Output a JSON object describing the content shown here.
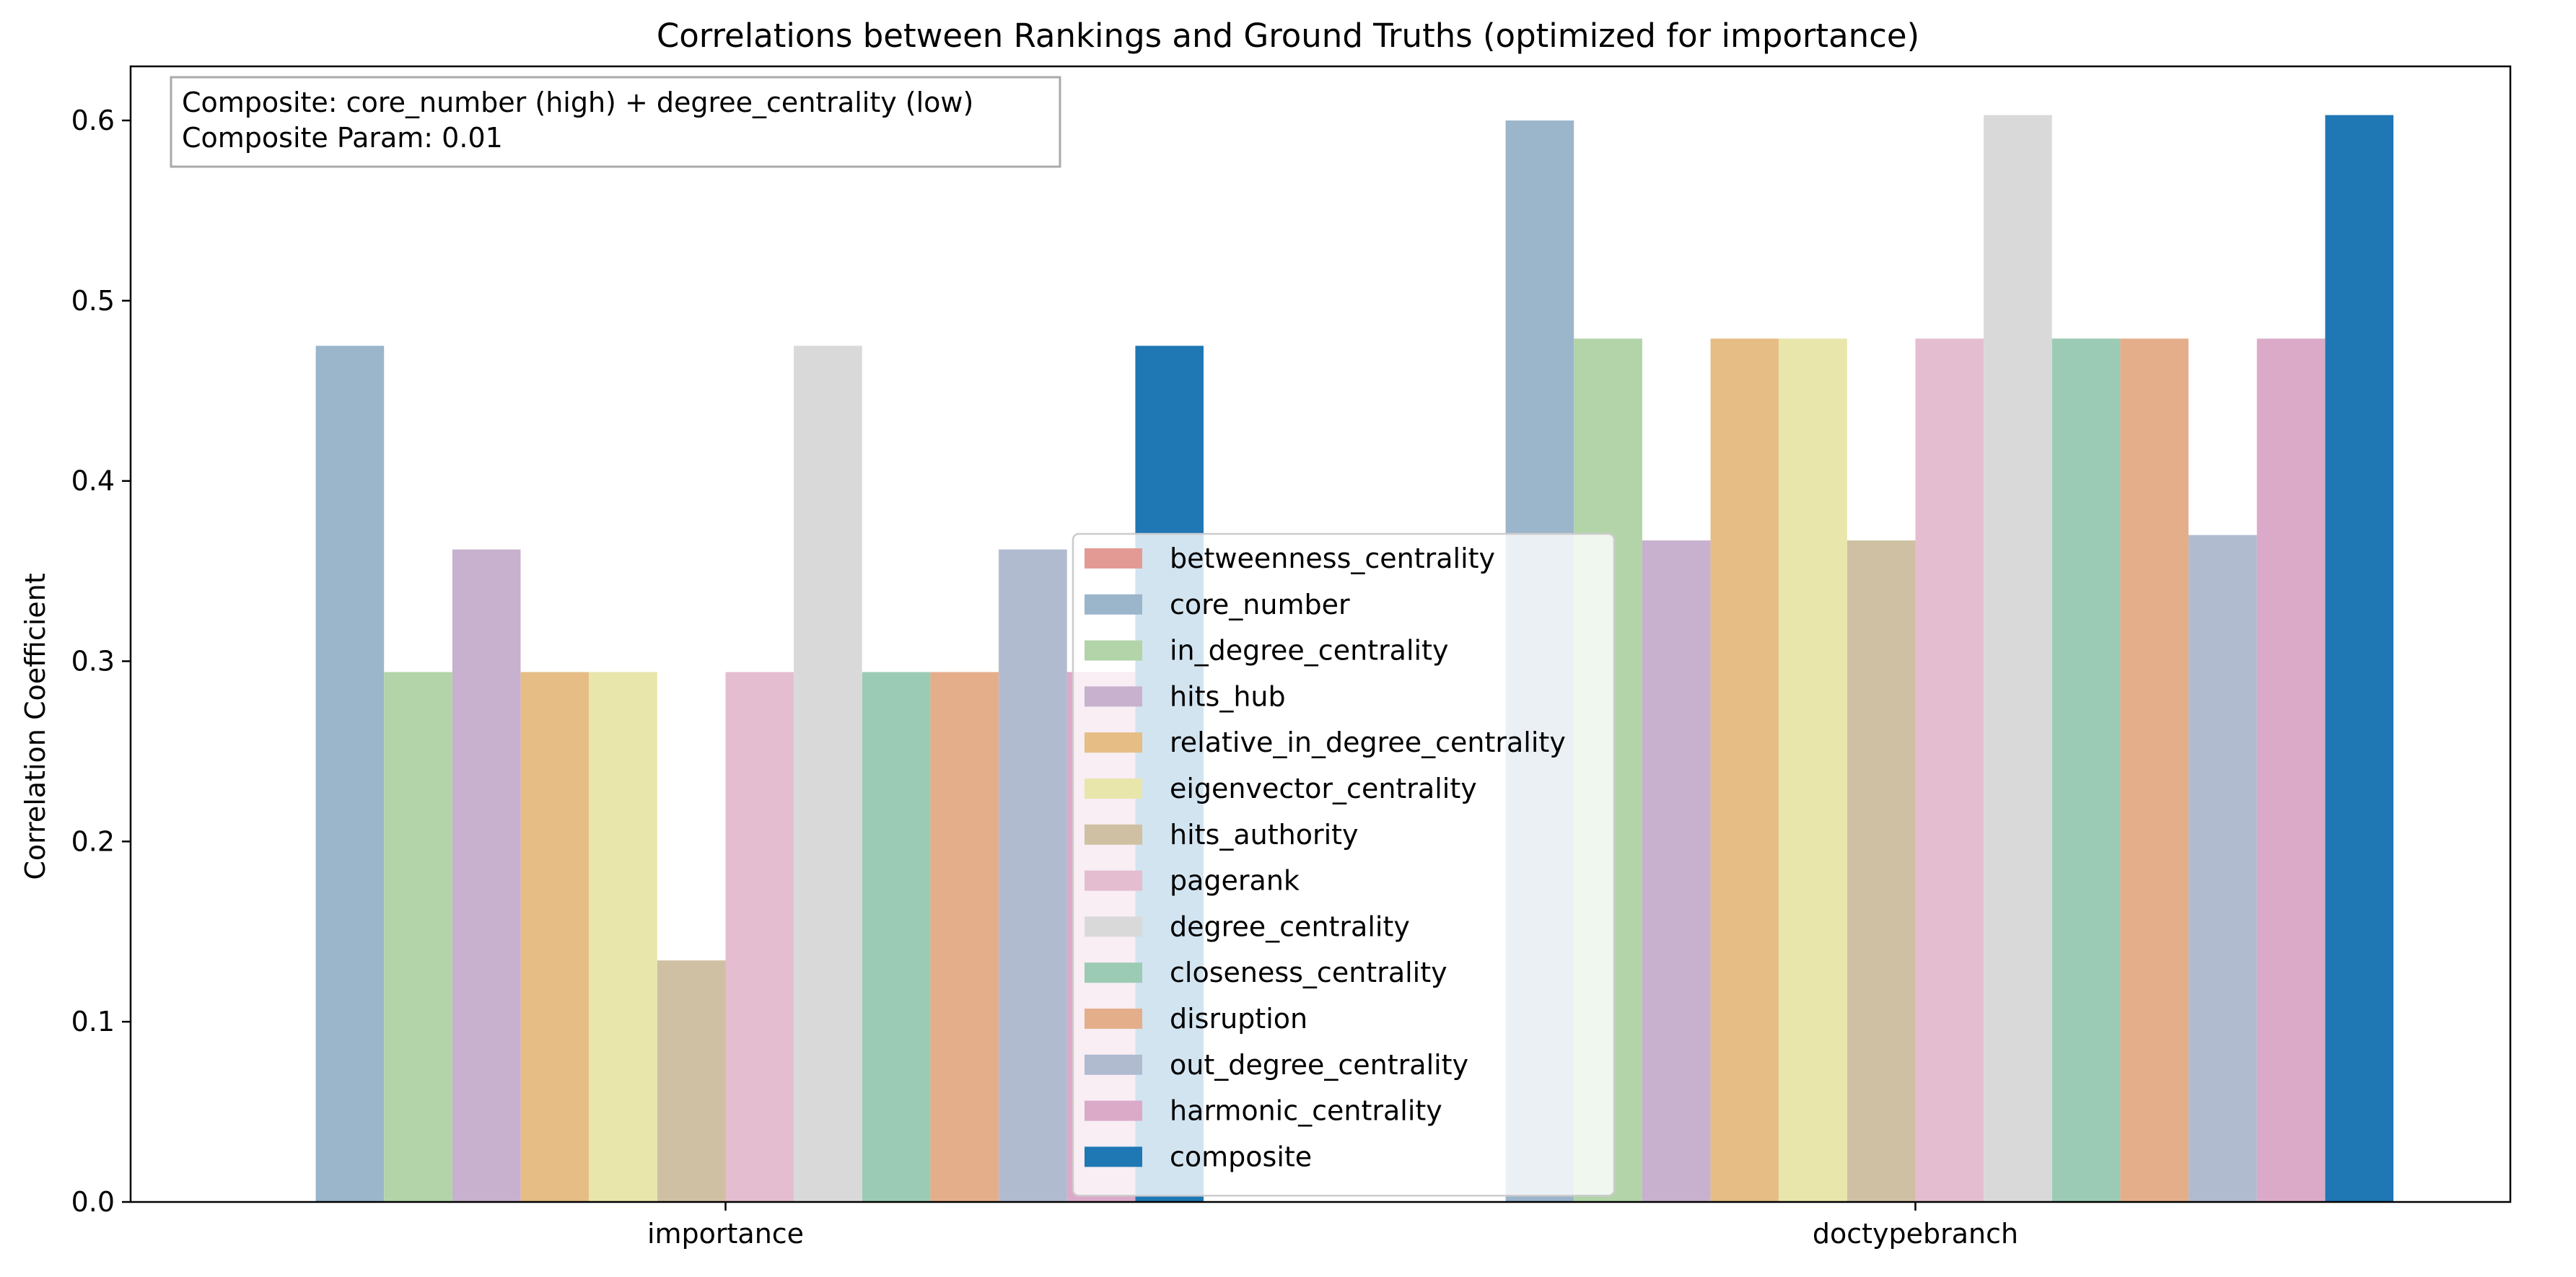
{
  "chart_data": {
    "type": "bar",
    "title": "Correlations between Rankings and Ground Truths (optimized for importance)",
    "xlabel": "",
    "ylabel": "Correlation Coefficient",
    "ylim": [
      0,
      0.63
    ],
    "yticks": [
      "0.0",
      "0.1",
      "0.2",
      "0.3",
      "0.4",
      "0.5",
      "0.6"
    ],
    "categories": [
      "importance",
      "doctypebranch"
    ],
    "grid": false,
    "legend_position": "center",
    "series": [
      {
        "name": "betweenness_centrality",
        "color": "#e49a94",
        "values": [
          0.0,
          0.0
        ]
      },
      {
        "name": "core_number",
        "color": "#9bb5cb",
        "values": [
          0.475,
          0.6
        ]
      },
      {
        "name": "in_degree_centrality",
        "color": "#b2d4a8",
        "values": [
          0.294,
          0.479
        ]
      },
      {
        "name": "hits_hub",
        "color": "#c7b1ce",
        "values": [
          0.362,
          0.367
        ]
      },
      {
        "name": "relative_in_degree_centrality",
        "color": "#e5bd85",
        "values": [
          0.294,
          0.479
        ]
      },
      {
        "name": "eigenvector_centrality",
        "color": "#e8e6ab",
        "values": [
          0.294,
          0.479
        ]
      },
      {
        "name": "hits_authority",
        "color": "#cfc0a3",
        "values": [
          0.134,
          0.367
        ]
      },
      {
        "name": "pagerank",
        "color": "#e5bdd0",
        "values": [
          0.294,
          0.479
        ]
      },
      {
        "name": "degree_centrality",
        "color": "#d9d9d9",
        "values": [
          0.475,
          0.603
        ]
      },
      {
        "name": "closeness_centrality",
        "color": "#9bcbb4",
        "values": [
          0.294,
          0.479
        ]
      },
      {
        "name": "disruption",
        "color": "#e5ae8b",
        "values": [
          0.294,
          0.479
        ]
      },
      {
        "name": "out_degree_centrality",
        "color": "#b0bbd0",
        "values": [
          0.362,
          0.37
        ]
      },
      {
        "name": "harmonic_centrality",
        "color": "#dbaac9",
        "values": [
          0.294,
          0.479
        ]
      },
      {
        "name": "composite",
        "color": "#1f77b4",
        "values": [
          0.475,
          0.603
        ]
      }
    ],
    "annotation": [
      "Composite: core_number (high) + degree_centrality (low)",
      "Composite Param: 0.01"
    ]
  }
}
